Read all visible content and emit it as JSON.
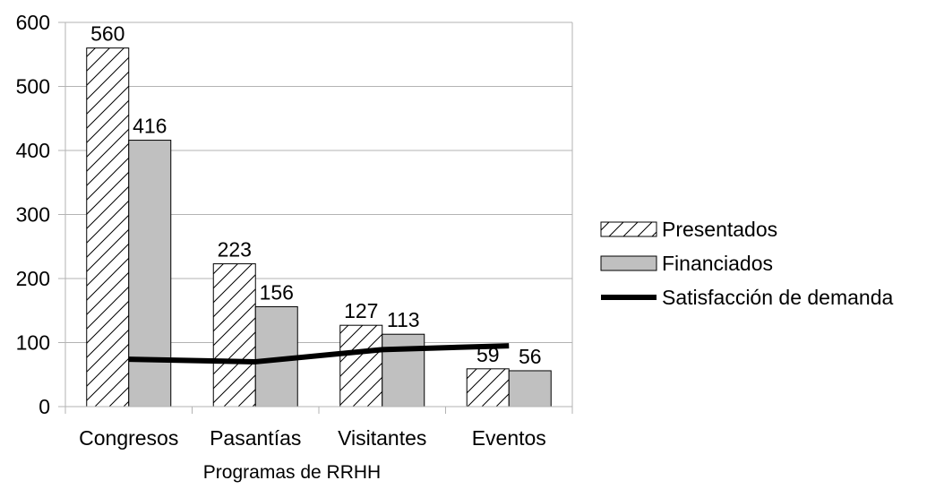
{
  "chart_data": {
    "type": "bar",
    "categories": [
      "Congresos",
      "Pasantías",
      "Visitantes",
      "Eventos"
    ],
    "series": [
      {
        "name": "Presentados",
        "type": "bar",
        "pattern": "hatch",
        "values": [
          560,
          223,
          127,
          59
        ]
      },
      {
        "name": "Financiados",
        "type": "bar",
        "color": "#c0c0c0",
        "values": [
          416,
          156,
          113,
          56
        ]
      },
      {
        "name": "Satisfacción de demanda",
        "type": "line",
        "color": "#000000",
        "values": [
          74,
          70,
          89,
          95
        ]
      }
    ],
    "data_labels": {
      "Presentados": [
        "560",
        "223",
        "127",
        "59"
      ],
      "Financiados": [
        "416",
        "156",
        "113",
        "56"
      ]
    },
    "title": "",
    "xlabel": "Programas de RRHH",
    "ylabel": "",
    "ylim": [
      0,
      600
    ],
    "yticks": [
      "0",
      "100",
      "200",
      "300",
      "400",
      "500",
      "600"
    ],
    "grid": true,
    "legend_position": "right"
  }
}
